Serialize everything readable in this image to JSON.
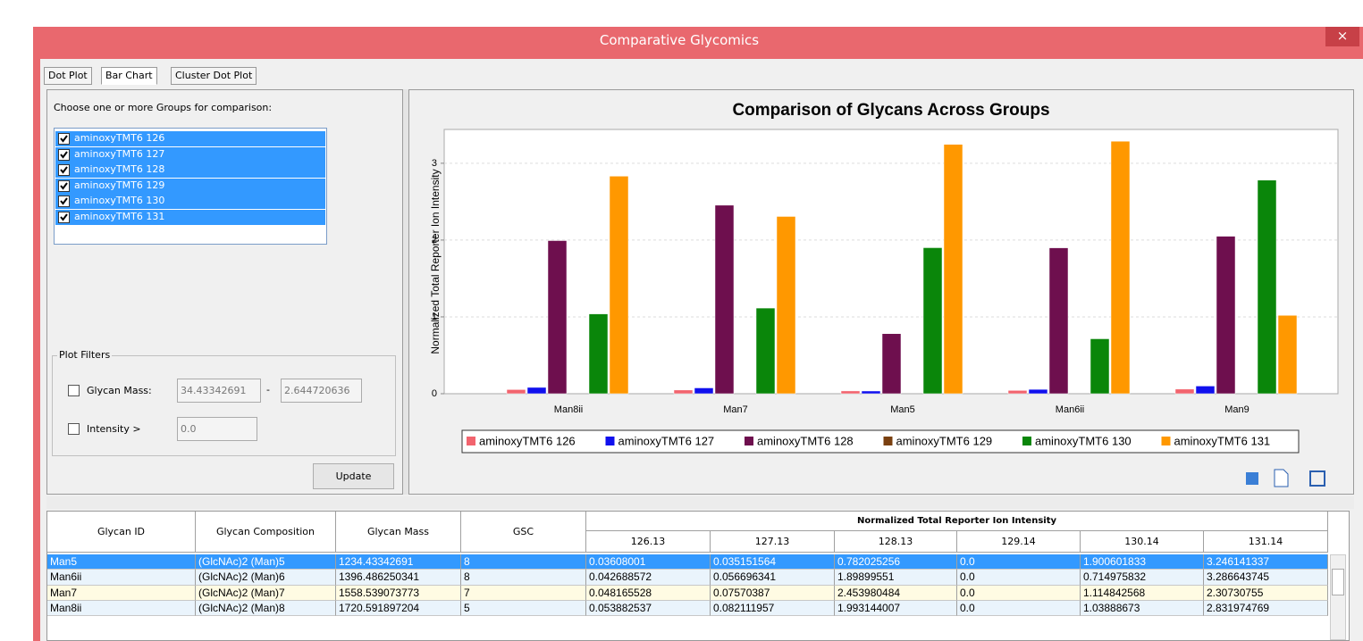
{
  "window": {
    "title": "Comparative Glycomics",
    "close": "×"
  },
  "tabs": [
    "Dot Plot",
    "Bar Chart",
    "Cluster Dot Plot"
  ],
  "groups": {
    "prompt": "Choose one or more Groups for comparison:",
    "items": [
      "aminoxyTMT6 126",
      "aminoxyTMT6 127",
      "aminoxyTMT6 128",
      "aminoxyTMT6 129",
      "aminoxyTMT6 130",
      "aminoxyTMT6 131"
    ]
  },
  "filters": {
    "title": "Plot Filters",
    "mass_label": "Glycan Mass:",
    "mass_min": "34.43342691",
    "separator": "-",
    "mass_max": "2.644720636",
    "intensity_label": "Intensity >",
    "intensity_value": "0.0",
    "button": "Update"
  },
  "chart_data": {
    "type": "bar",
    "title": "Comparison of Glycans Across Groups",
    "ylabel": "Normalized Total Reporter Ion Intensity",
    "categories": [
      "Man8ii",
      "Man7",
      "Man5",
      "Man6ii",
      "Man9"
    ],
    "series": [
      {
        "name": "aminoxyTMT6 126",
        "color": "#f2646e",
        "values": [
          0.053882537,
          0.048165528,
          0.03608001,
          0.042688572,
          0.06
        ]
      },
      {
        "name": "aminoxyTMT6 127",
        "color": "#1010ee",
        "values": [
          0.082111957,
          0.07570387,
          0.035151564,
          0.056696341,
          0.1
        ]
      },
      {
        "name": "aminoxyTMT6 128",
        "color": "#6e0f4e",
        "values": [
          1.993144007,
          2.453980484,
          0.782025256,
          1.89899551,
          2.05
        ]
      },
      {
        "name": "aminoxyTMT6 129",
        "color": "#7a4010",
        "values": [
          0,
          0,
          0,
          0,
          0
        ]
      },
      {
        "name": "aminoxyTMT6 130",
        "color": "#0a860a",
        "values": [
          1.03888673,
          1.114842568,
          1.900601833,
          0.714975832,
          2.78
        ]
      },
      {
        "name": "aminoxyTMT6 131",
        "color": "#ff9800",
        "values": [
          2.831974769,
          2.30730755,
          3.246141337,
          3.286643745,
          1.02
        ]
      }
    ],
    "ylim": [
      0,
      3.44
    ],
    "yticks": [
      0,
      1,
      2,
      3
    ],
    "grid": true,
    "legend": "bottom"
  },
  "table": {
    "columns": [
      "Glycan ID",
      "Glycan Composition",
      "Glycan Mass",
      "GSC"
    ],
    "group_header": "Normalized Total Reporter Ion Intensity",
    "subcolumns": [
      "126.13",
      "127.13",
      "128.13",
      "129.14",
      "130.14",
      "131.14"
    ],
    "rows": [
      [
        "Man5",
        "(GlcNAc)2 (Man)5",
        "1234.43342691",
        "8",
        "0.03608001",
        "0.035151564",
        "0.782025256",
        "0.0",
        "1.900601833",
        "3.246141337"
      ],
      [
        "Man6ii",
        "(GlcNAc)2 (Man)6",
        "1396.486250341",
        "8",
        "0.042688572",
        "0.056696341",
        "1.89899551",
        "0.0",
        "0.714975832",
        "3.286643745"
      ],
      [
        "Man7",
        "(GlcNAc)2 (Man)7",
        "1558.539073773",
        "7",
        "0.048165528",
        "0.07570387",
        "2.453980484",
        "0.0",
        "1.114842568",
        "2.30730755"
      ],
      [
        "Man8ii",
        "(GlcNAc)2 (Man)8",
        "1720.591897204",
        "5",
        "0.053882537",
        "0.082111957",
        "1.993144007",
        "0.0",
        "1.03888673",
        "2.831974769"
      ]
    ]
  }
}
